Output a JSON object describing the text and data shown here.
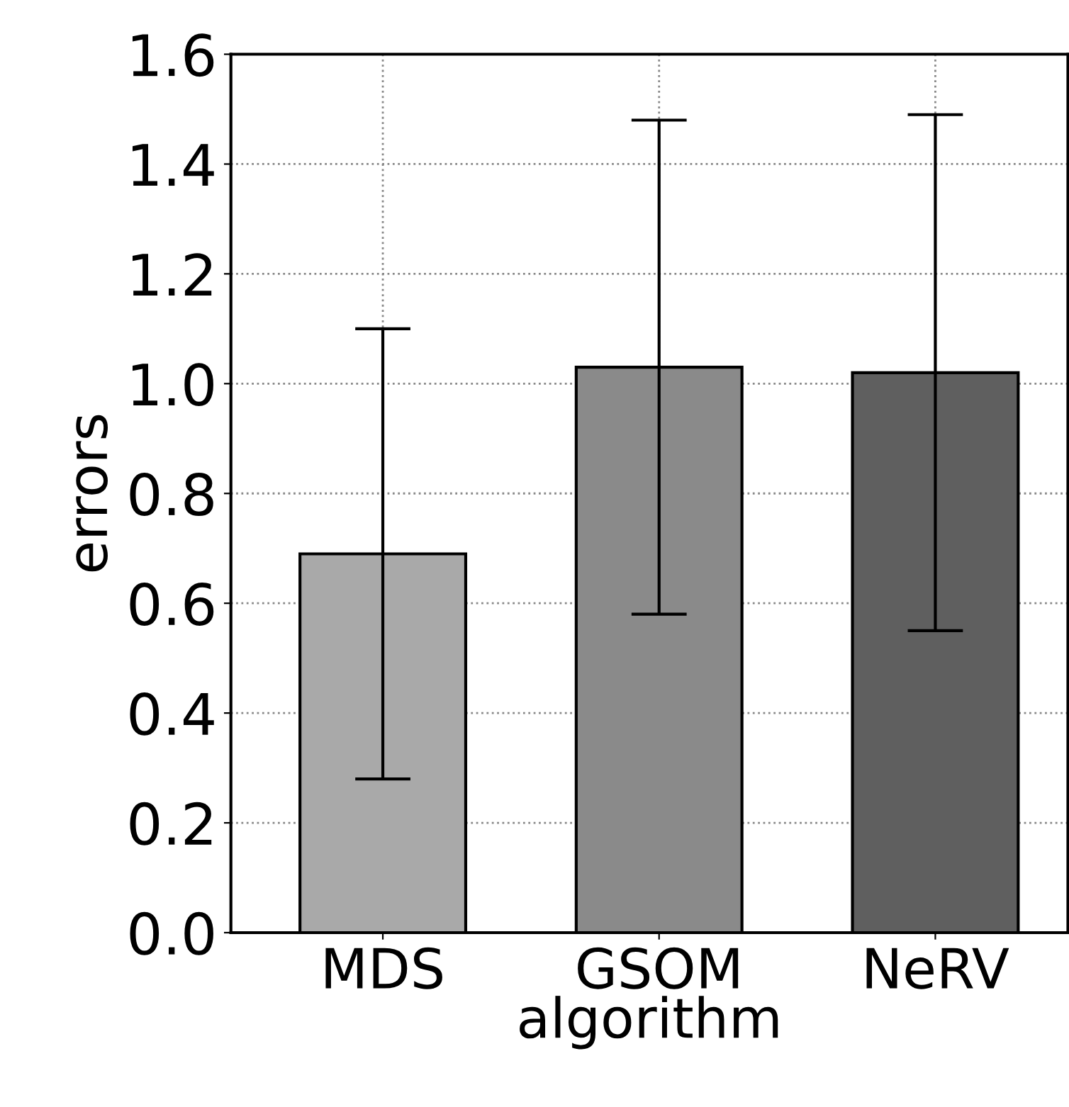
{
  "chart_data": {
    "type": "bar",
    "xlabel": "algorithm",
    "ylabel": "errors",
    "categories": [
      "MDS",
      "GSOM",
      "NeRV"
    ],
    "values": [
      0.69,
      1.03,
      1.02
    ],
    "errors": [
      0.41,
      0.45,
      0.47
    ],
    "colors": [
      "#a9a9a9",
      "#8a8a8a",
      "#5f5f5f"
    ],
    "ylim": [
      0,
      1.6
    ],
    "yticks": [
      {
        "value": 0,
        "label": "0.0"
      },
      0.2,
      0.4,
      0.6,
      0.8,
      {
        "value": 1,
        "label": "1.0"
      },
      1.2,
      1.4,
      1.6
    ],
    "grid": true
  }
}
